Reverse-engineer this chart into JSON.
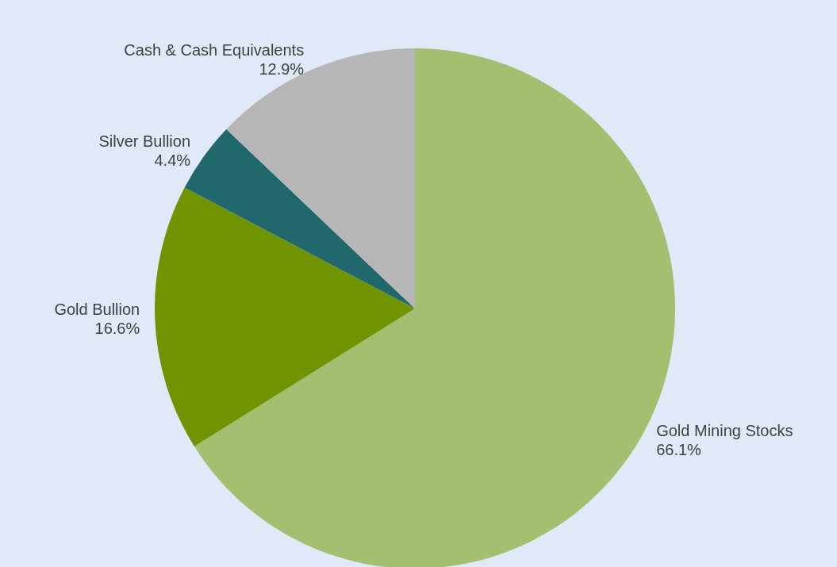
{
  "chart_data": {
    "type": "pie",
    "categories": [
      "Gold Mining Stocks",
      "Gold Bullion",
      "Silver Bullion",
      "Cash & Cash Equivalents"
    ],
    "values": [
      66.1,
      16.6,
      4.4,
      12.9
    ],
    "colors": [
      "#a3bf6f",
      "#6f9400",
      "#20686c",
      "#b6b6b6"
    ],
    "value_labels": [
      "66.1%",
      "16.6%",
      "4.4%",
      "12.9%"
    ],
    "legend": false
  }
}
